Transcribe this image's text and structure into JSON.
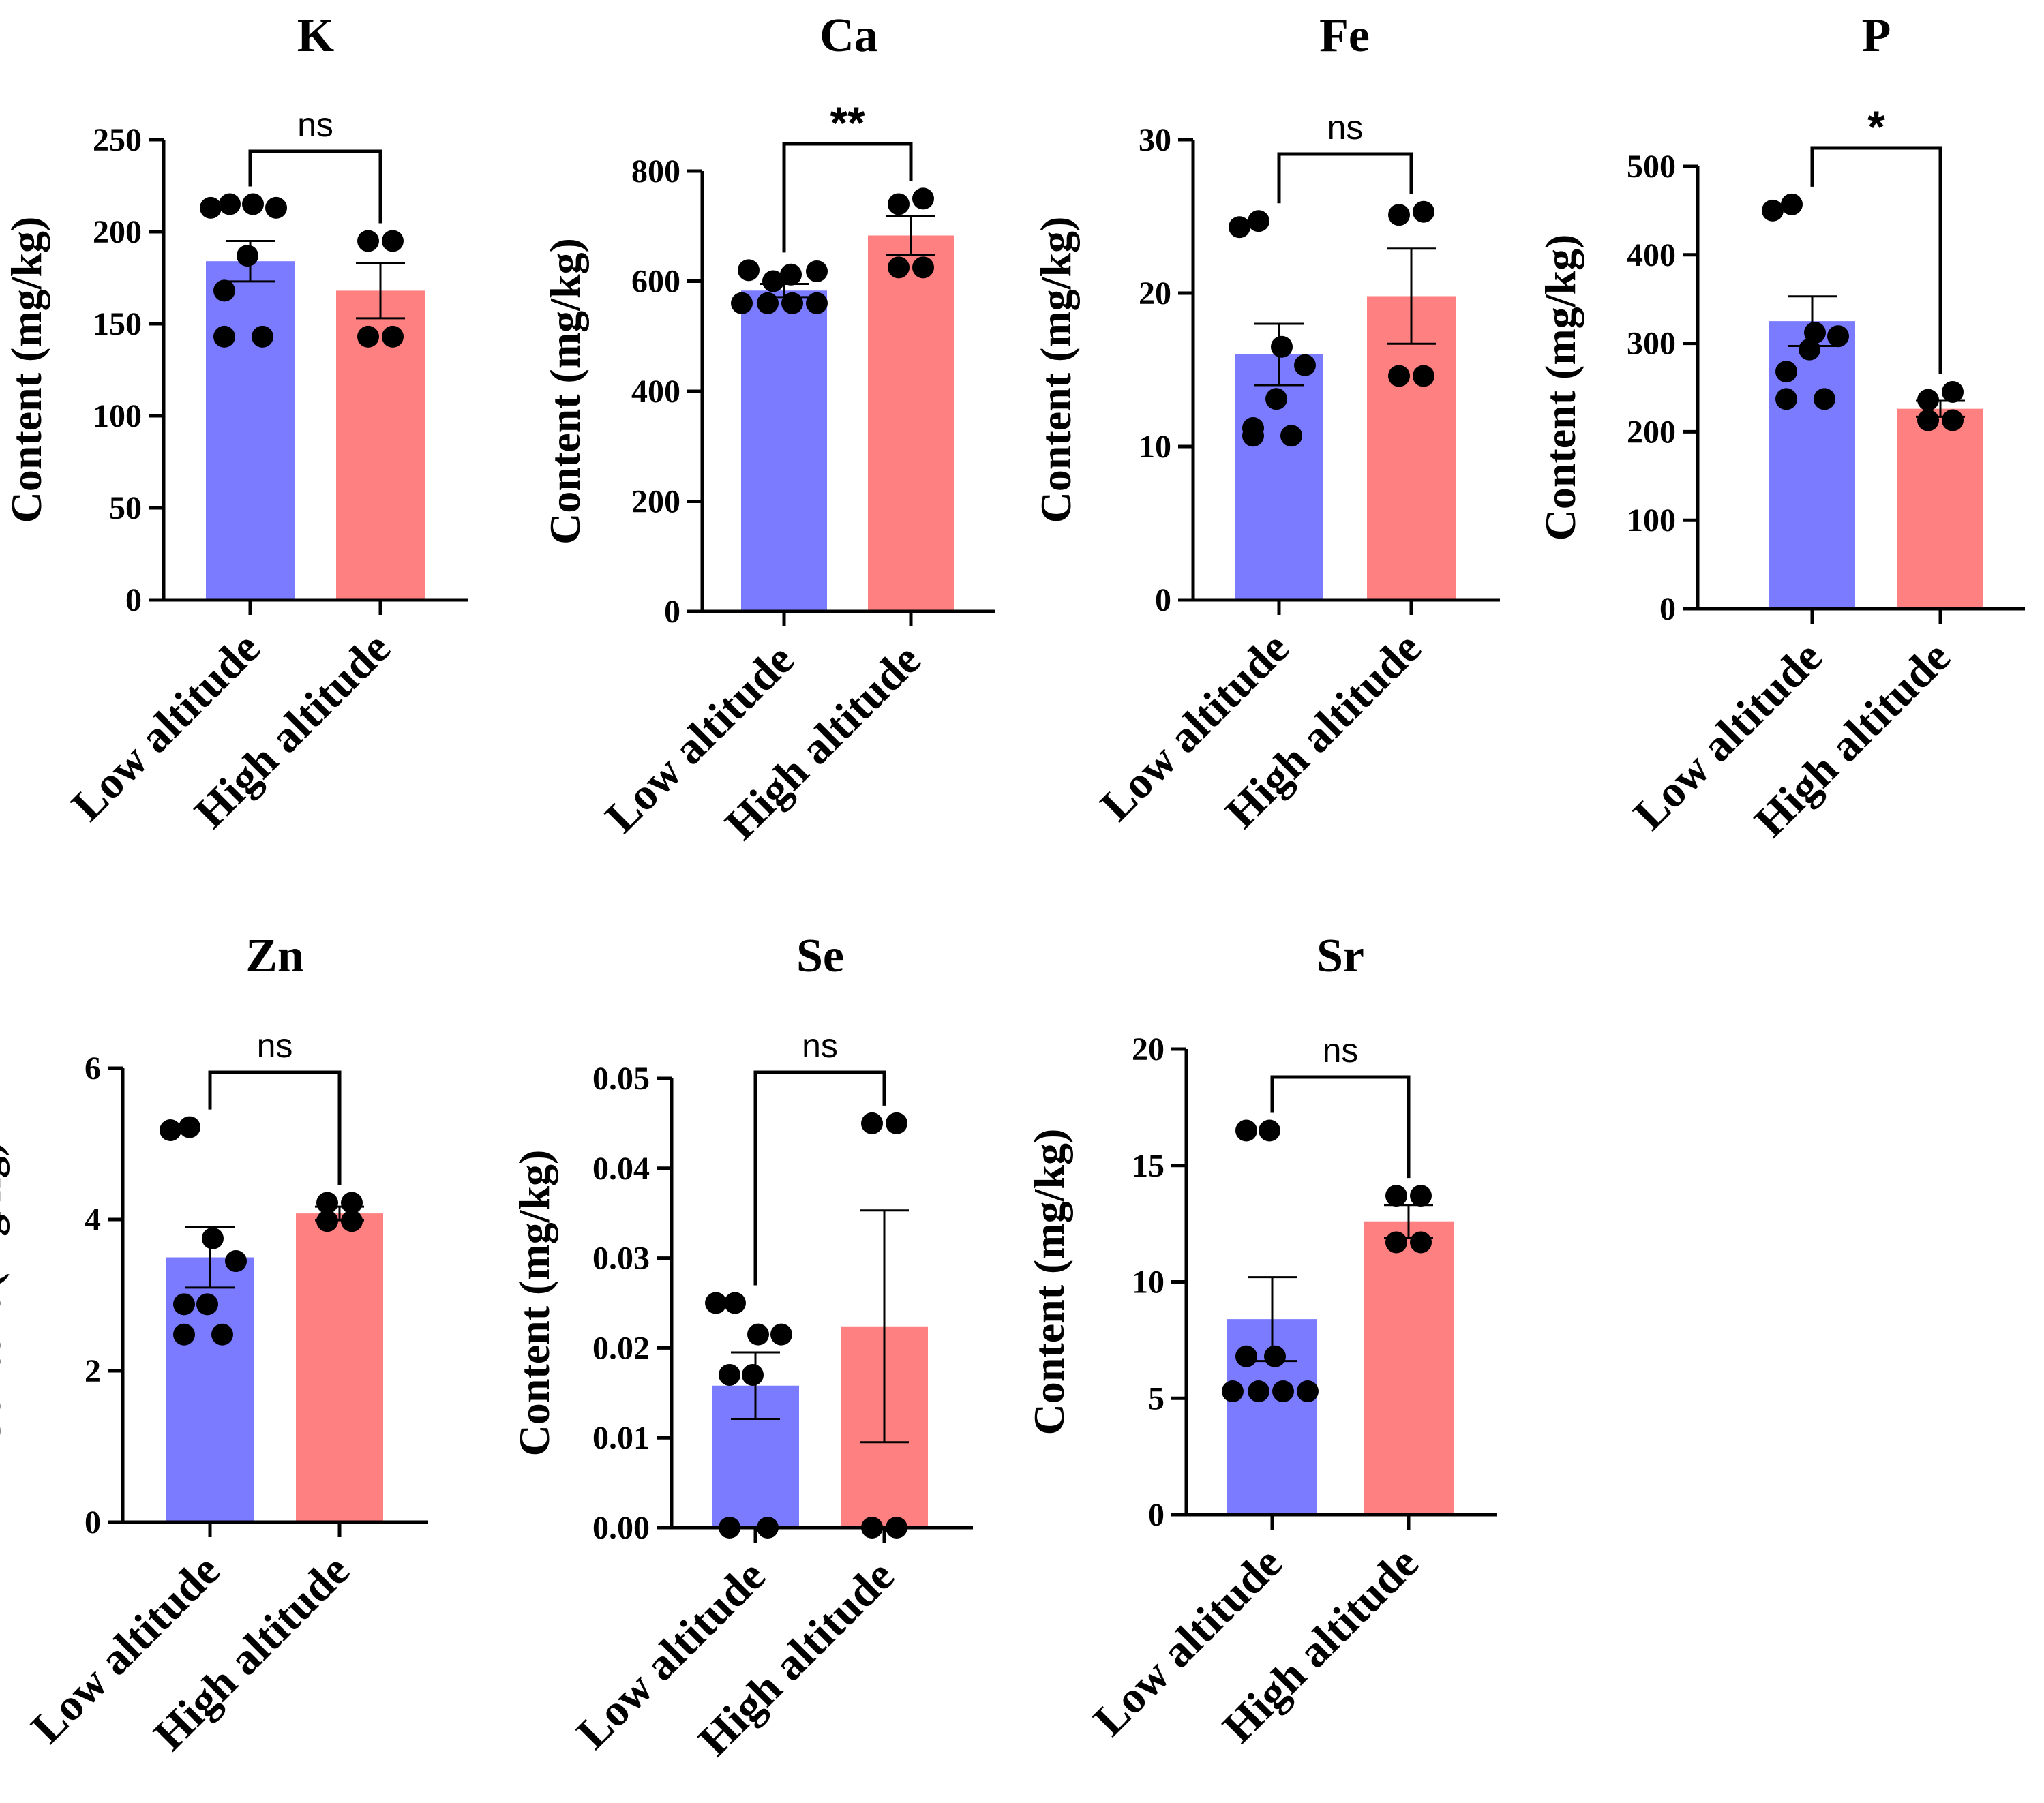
{
  "colors": {
    "low": "#7b7bff",
    "high": "#ff8080",
    "axis": "#000000",
    "point": "#000000"
  },
  "chart_data": [
    {
      "type": "bar",
      "title": "K",
      "ylabel": "Content (mg/kg)",
      "categories": [
        "Low altitude",
        "High altitude"
      ],
      "ylim": [
        0,
        250
      ],
      "yticks": [
        "0",
        "50",
        "100",
        "150",
        "200",
        "250"
      ],
      "yticks_values": [
        0,
        50,
        100,
        150,
        200,
        250
      ],
      "significance": "ns",
      "series": [
        {
          "name": "Low altitude",
          "mean": 184,
          "sem": 11,
          "points": [
            213,
            215,
            215,
            213,
            187,
            168,
            143,
            143
          ]
        },
        {
          "name": "High altitude",
          "mean": 168,
          "sem": 15,
          "points": [
            195,
            195,
            143,
            143
          ]
        }
      ]
    },
    {
      "type": "bar",
      "title": "Ca",
      "ylabel": "Content (mg/kg)",
      "categories": [
        "Low altitude",
        "High altitude"
      ],
      "ylim": [
        0,
        800
      ],
      "yticks": [
        "0",
        "200",
        "400",
        "600",
        "800"
      ],
      "yticks_values": [
        0,
        200,
        400,
        600,
        800
      ],
      "significance": "**",
      "series": [
        {
          "name": "Low altitude",
          "mean": 583,
          "sem": 12,
          "points": [
            620,
            600,
            612,
            618,
            560,
            560,
            560,
            560
          ]
        },
        {
          "name": "High altitude",
          "mean": 683,
          "sem": 35,
          "points": [
            740,
            750,
            625,
            625
          ]
        }
      ]
    },
    {
      "type": "bar",
      "title": "Fe",
      "ylabel": "Content (mg/kg)",
      "categories": [
        "Low altitude",
        "High altitude"
      ],
      "ylim": [
        0,
        30
      ],
      "yticks": [
        "0",
        "10",
        "20",
        "30"
      ],
      "yticks_values": [
        0,
        10,
        20,
        30
      ],
      "significance": "ns",
      "series": [
        {
          "name": "Low altitude",
          "mean": 16,
          "sem": 2,
          "points": [
            24.3,
            24.7,
            16.5,
            15.3,
            13.1,
            11.2,
            10.7,
            10.7
          ]
        },
        {
          "name": "High altitude",
          "mean": 19.8,
          "sem": 3.1,
          "points": [
            25.1,
            25.3,
            14.6,
            14.6
          ]
        }
      ]
    },
    {
      "type": "bar",
      "title": "P",
      "ylabel": "Content (mg/kg)",
      "categories": [
        "Low altitude",
        "High altitude"
      ],
      "ylim": [
        0,
        500
      ],
      "yticks": [
        "0",
        "100",
        "200",
        "300",
        "400",
        "500"
      ],
      "yticks_values": [
        0,
        100,
        200,
        300,
        400,
        500
      ],
      "significance": "*",
      "series": [
        {
          "name": "Low altitude",
          "mean": 325,
          "sem": 28,
          "points": [
            450,
            457,
            312,
            308,
            293,
            268,
            237,
            237
          ]
        },
        {
          "name": "High altitude",
          "mean": 226,
          "sem": 9,
          "points": [
            236,
            245,
            213,
            213
          ]
        }
      ]
    },
    {
      "type": "bar",
      "title": "Zn",
      "ylabel": "Content (mg/kg)",
      "categories": [
        "Low altitude",
        "High altitude"
      ],
      "ylim": [
        0,
        6
      ],
      "yticks": [
        "0",
        "2",
        "4",
        "6"
      ],
      "yticks_values": [
        0,
        2,
        4,
        6
      ],
      "significance": "ns",
      "series": [
        {
          "name": "Low altitude",
          "mean": 3.5,
          "sem": 0.4,
          "points": [
            5.18,
            5.22,
            3.75,
            3.45,
            2.88,
            2.88,
            2.48,
            2.48
          ]
        },
        {
          "name": "High altitude",
          "mean": 4.08,
          "sem": 0.09,
          "points": [
            4.22,
            4.22,
            3.98,
            3.98
          ]
        }
      ]
    },
    {
      "type": "bar",
      "title": "Se",
      "ylabel": "Content (mg/kg)",
      "categories": [
        "Low altitude",
        "High altitude"
      ],
      "ylim": [
        0,
        0.05
      ],
      "yticks": [
        "0.00",
        "0.01",
        "0.02",
        "0.03",
        "0.04",
        "0.05"
      ],
      "yticks_values": [
        0,
        0.01,
        0.02,
        0.03,
        0.04,
        0.05
      ],
      "significance": "ns",
      "series": [
        {
          "name": "Low altitude",
          "mean": 0.0158,
          "sem": 0.0037,
          "points": [
            0.025,
            0.025,
            0.0215,
            0.0215,
            0.017,
            0.017,
            0.0,
            0.0
          ]
        },
        {
          "name": "High altitude",
          "mean": 0.0224,
          "sem": 0.0129,
          "points": [
            0.045,
            0.045,
            0.0,
            0.0
          ]
        }
      ]
    },
    {
      "type": "bar",
      "title": "Sr",
      "ylabel": "Content (mg/kg)",
      "categories": [
        "Low altitude",
        "High altitude"
      ],
      "ylim": [
        0,
        20
      ],
      "yticks": [
        "0",
        "5",
        "10",
        "15",
        "20"
      ],
      "yticks_values": [
        0,
        5,
        10,
        15,
        20
      ],
      "significance": "ns",
      "series": [
        {
          "name": "Low altitude",
          "mean": 8.4,
          "sem": 1.8,
          "points": [
            16.5,
            16.5,
            6.8,
            6.8,
            5.3,
            5.3,
            5.3,
            5.3
          ]
        },
        {
          "name": "High altitude",
          "mean": 12.6,
          "sem": 0.7,
          "points": [
            13.7,
            13.7,
            11.7,
            11.7
          ]
        }
      ]
    }
  ]
}
